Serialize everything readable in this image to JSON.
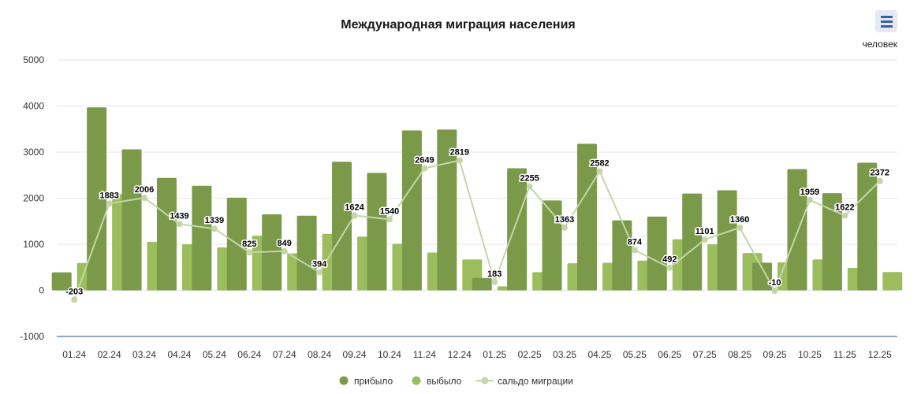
{
  "chart_data": {
    "type": "bar",
    "title": "Международная миграция населения",
    "unit_label": "человек",
    "categories": [
      "01.24",
      "02.24",
      "03.24",
      "04.24",
      "05.24",
      "06.24",
      "07.24",
      "08.24",
      "09.24",
      "10.24",
      "11.24",
      "12.24",
      "01.25",
      "02.25",
      "03.25",
      "04.25",
      "05.25",
      "06.25",
      "07.25",
      "08.25",
      "09.25",
      "10.25",
      "11.25",
      "12.25"
    ],
    "series": [
      {
        "name": "прибыло",
        "type": "bar",
        "color": "#7a9a4a",
        "values": [
          390,
          3970,
          3060,
          2440,
          2270,
          2010,
          1650,
          1620,
          2790,
          2550,
          3470,
          3490,
          270,
          2650,
          1950,
          3180,
          1520,
          1600,
          2100,
          2170,
          600,
          2630,
          2110,
          2770
        ]
      },
      {
        "name": "выбыло",
        "type": "bar",
        "color": "#9bbd5e",
        "values": [
          593,
          2087,
          1054,
          1001,
          931,
          1185,
          801,
          1226,
          1166,
          1010,
          821,
          671,
          87,
          395,
          587,
          598,
          646,
          1108,
          999,
          810,
          610,
          671,
          488,
          398
        ]
      },
      {
        "name": "сальдо миграции",
        "type": "line",
        "color": "#c3d6a7",
        "values": [
          -203,
          1883,
          2006,
          1439,
          1339,
          825,
          849,
          394,
          1624,
          1540,
          2649,
          2819,
          183,
          2255,
          1363,
          2582,
          874,
          492,
          1101,
          1360,
          -10,
          1959,
          1622,
          2372
        ]
      }
    ],
    "xlabel": "",
    "ylabel": "",
    "ylim": [
      -1000,
      5000
    ],
    "yticks": [
      -1000,
      0,
      1000,
      2000,
      3000,
      4000,
      5000
    ],
    "grid": true,
    "legend": "bottom-center"
  },
  "ui": {
    "menu_icon": "hamburger-menu-icon",
    "axis_line_color": "#2f4f7a",
    "grid_color": "#e6e6e6"
  }
}
